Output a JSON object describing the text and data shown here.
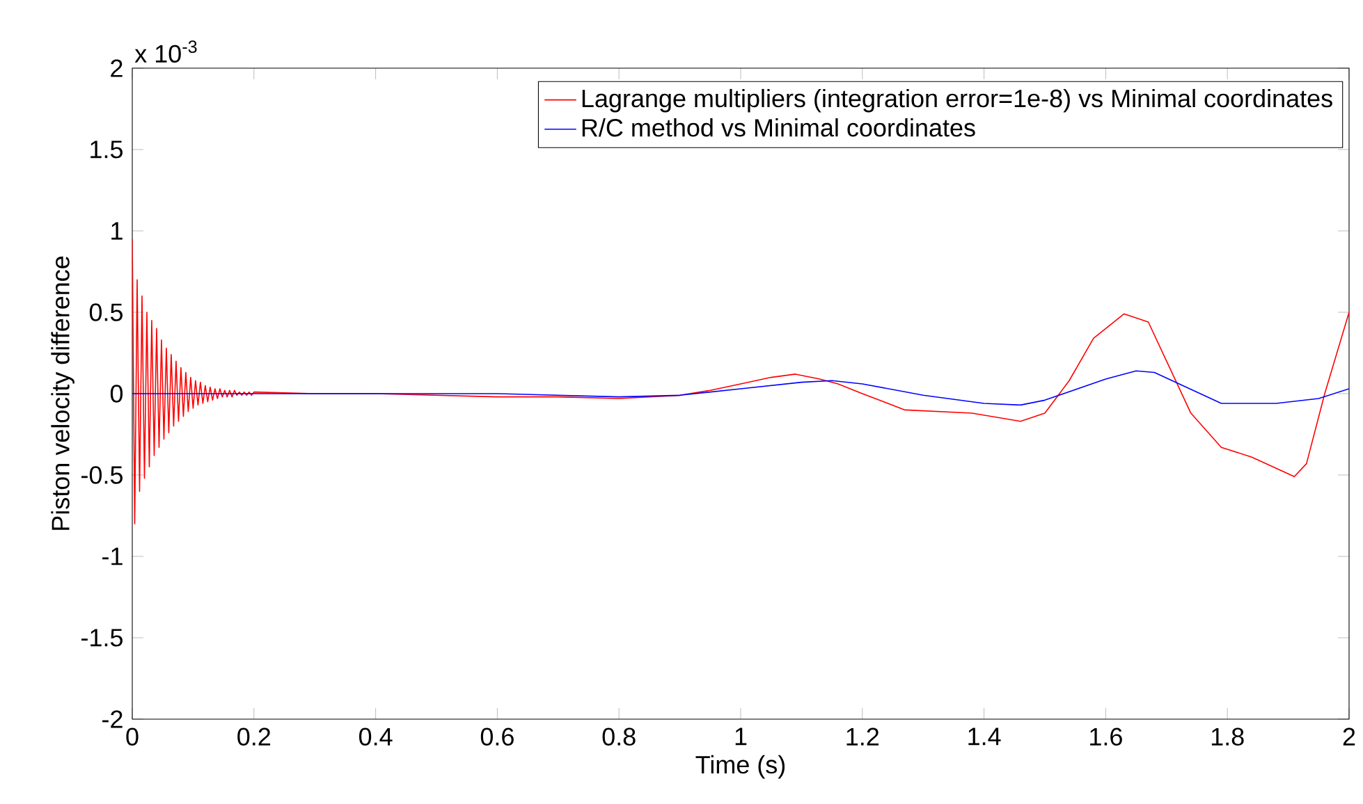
{
  "chart_data": {
    "type": "line",
    "xlabel": "Time (s)",
    "ylabel": "Piston velocity difference",
    "annotations": [
      "x 10$^{-3}$"
    ],
    "xlim": [
      0,
      2
    ],
    "ylim": [
      -2,
      2
    ],
    "xticks": [
      0,
      0.2,
      0.4,
      0.6,
      0.8,
      1,
      1.2,
      1.4,
      1.6,
      1.8,
      2
    ],
    "yticks": [
      -2,
      -1.5,
      -1,
      -0.5,
      0,
      0.5,
      1,
      1.5,
      2
    ],
    "legend": "top right",
    "grid": false,
    "series": [
      {
        "name": "Lagrange multipliers (integration error=1e-8) vs Minimal coordinates",
        "color": "#ff0000",
        "x": [
          0,
          0.004,
          0.008,
          0.012,
          0.016,
          0.02,
          0.024,
          0.028,
          0.032,
          0.036,
          0.04,
          0.044,
          0.048,
          0.052,
          0.056,
          0.06,
          0.064,
          0.068,
          0.072,
          0.076,
          0.08,
          0.084,
          0.088,
          0.092,
          0.096,
          0.1,
          0.104,
          0.108,
          0.112,
          0.116,
          0.12,
          0.124,
          0.128,
          0.132,
          0.136,
          0.14,
          0.144,
          0.148,
          0.152,
          0.156,
          0.16,
          0.164,
          0.168,
          0.172,
          0.176,
          0.18,
          0.184,
          0.188,
          0.192,
          0.196,
          0.2,
          0.3,
          0.4,
          0.5,
          0.6,
          0.7,
          0.8,
          0.9,
          0.95,
          1.0,
          1.05,
          1.09,
          1.13,
          1.16,
          1.2,
          1.27,
          1.38,
          1.46,
          1.5,
          1.54,
          1.58,
          1.63,
          1.67,
          1.7,
          1.74,
          1.79,
          1.84,
          1.91,
          1.93,
          1.96,
          2.0
        ],
        "values": [
          0.95,
          -0.8,
          0.7,
          -0.6,
          0.6,
          -0.52,
          0.5,
          -0.45,
          0.45,
          -0.38,
          0.4,
          -0.33,
          0.33,
          -0.28,
          0.28,
          -0.24,
          0.24,
          -0.2,
          0.2,
          -0.17,
          0.16,
          -0.14,
          0.13,
          -0.11,
          0.1,
          -0.09,
          0.08,
          -0.07,
          0.07,
          -0.06,
          0.05,
          -0.05,
          0.04,
          -0.04,
          0.03,
          -0.03,
          0.03,
          -0.02,
          0.02,
          -0.02,
          0.02,
          -0.02,
          0.02,
          -0.01,
          0.01,
          -0.01,
          0.01,
          -0.01,
          0.01,
          -0.01,
          0.01,
          0,
          0,
          -0.01,
          -0.02,
          -0.02,
          -0.03,
          -0.01,
          0.02,
          0.06,
          0.1,
          0.12,
          0.09,
          0.06,
          0,
          -0.1,
          -0.12,
          -0.17,
          -0.12,
          0.08,
          0.34,
          0.49,
          0.44,
          0.2,
          -0.12,
          -0.33,
          -0.39,
          -0.51,
          -0.43,
          0,
          0.5
        ]
      },
      {
        "name": "R/C method vs Minimal coordinates",
        "color": "#0000ff",
        "x": [
          0,
          0.2,
          0.4,
          0.6,
          0.8,
          0.9,
          1.0,
          1.1,
          1.15,
          1.2,
          1.3,
          1.4,
          1.46,
          1.5,
          1.6,
          1.65,
          1.68,
          1.79,
          1.88,
          1.95,
          2.0
        ],
        "values": [
          0,
          0,
          0,
          0,
          -0.02,
          -0.01,
          0.03,
          0.07,
          0.08,
          0.06,
          -0.01,
          -0.06,
          -0.07,
          -0.04,
          0.09,
          0.14,
          0.13,
          -0.06,
          -0.06,
          -0.03,
          0.03
        ]
      }
    ]
  }
}
